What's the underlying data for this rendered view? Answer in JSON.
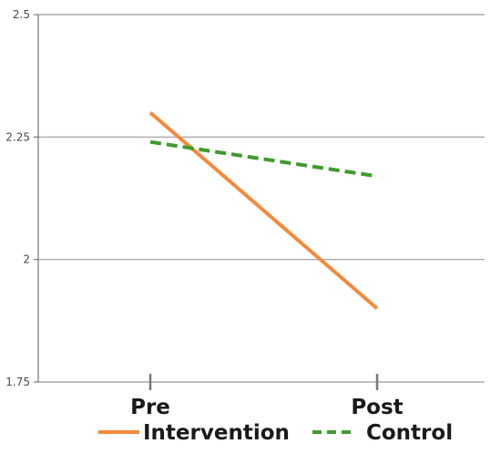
{
  "chart_data": {
    "type": "line",
    "categories": [
      "Pre",
      "Post"
    ],
    "ylim": [
      1.75,
      2.5
    ],
    "yticks": [
      1.75,
      2,
      2.25,
      2.5
    ],
    "ytick_labels": [
      "1.75",
      "2",
      "2.25",
      "2.5"
    ],
    "grid": true,
    "legend_position": "bottom",
    "series": [
      {
        "name": "Intervention",
        "values": [
          2.3,
          1.9
        ],
        "color": "#f5893b",
        "style": "solid"
      },
      {
        "name": "Control",
        "values": [
          2.24,
          2.17
        ],
        "color": "#3f9b2f",
        "style": "dashed"
      }
    ],
    "gridline_color": "#9a9a9a",
    "axis_color": "#777777"
  }
}
